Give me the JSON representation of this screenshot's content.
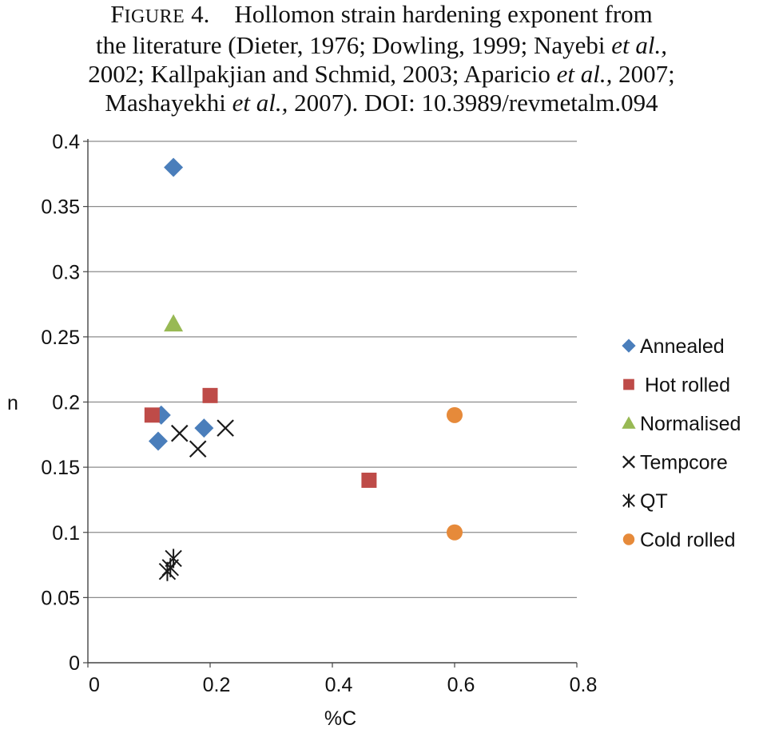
{
  "caption": {
    "label_initial": "F",
    "label_rest": "IGURE",
    "label_number": "4.",
    "line1_text": "Hollomon strain hardening exponent from",
    "line2_a": "the literature (Dieter, 1976; Dowling, 1999; Nayebi ",
    "line2_italic": "et al.,",
    "line3_a": "2002; Kallpakjian and Schmid, 2003; Aparicio ",
    "line3_italic": "et al.,",
    "line3_b": " 2007;",
    "line4_a": "Mashayekhi ",
    "line4_italic": "et al.,",
    "line4_b": " 2007). DOI: 10.3989/revmetalm.094"
  },
  "chart_data": {
    "type": "scatter",
    "xlabel": "%C",
    "ylabel": "n",
    "xlim": [
      0,
      0.8
    ],
    "ylim": [
      0,
      0.4
    ],
    "x_ticks": [
      0,
      0.2,
      0.4,
      0.6,
      0.8
    ],
    "x_tick_labels": [
      "0",
      "0.2",
      "0.4",
      "0.6",
      "0.8"
    ],
    "y_ticks": [
      0,
      0.05,
      0.1,
      0.15,
      0.2,
      0.25,
      0.3,
      0.35,
      0.4
    ],
    "y_tick_labels": [
      "0",
      "0.05",
      "0.1",
      "0.15",
      "0.2",
      "0.25",
      "0.3",
      "0.35",
      "0.4"
    ],
    "grid": "horizontal",
    "legend_position": "right",
    "series": [
      {
        "name": "Annealed",
        "marker": "diamond",
        "color": "#4a7ebb",
        "points": [
          [
            0.14,
            0.38
          ],
          [
            0.12,
            0.19
          ],
          [
            0.115,
            0.17
          ],
          [
            0.19,
            0.18
          ]
        ]
      },
      {
        "name": "Hot rolled",
        "marker": "square",
        "color": "#be4b48",
        "points": [
          [
            0.105,
            0.19
          ],
          [
            0.2,
            0.205
          ],
          [
            0.46,
            0.14
          ]
        ]
      },
      {
        "name": "Normalised",
        "marker": "triangle",
        "color": "#98b954",
        "points": [
          [
            0.14,
            0.26
          ]
        ]
      },
      {
        "name": "Tempcore",
        "marker": "x",
        "color": "#1a1a1a",
        "points": [
          [
            0.15,
            0.176
          ],
          [
            0.18,
            0.164
          ],
          [
            0.225,
            0.18
          ]
        ]
      },
      {
        "name": "QT",
        "marker": "asterisk",
        "color": "#1a1a1a",
        "points": [
          [
            0.14,
            0.08
          ],
          [
            0.135,
            0.073
          ],
          [
            0.13,
            0.07
          ]
        ]
      },
      {
        "name": "Cold rolled",
        "marker": "circle",
        "color": "#e68a3a",
        "points": [
          [
            0.6,
            0.19
          ],
          [
            0.6,
            0.1
          ]
        ]
      }
    ]
  }
}
